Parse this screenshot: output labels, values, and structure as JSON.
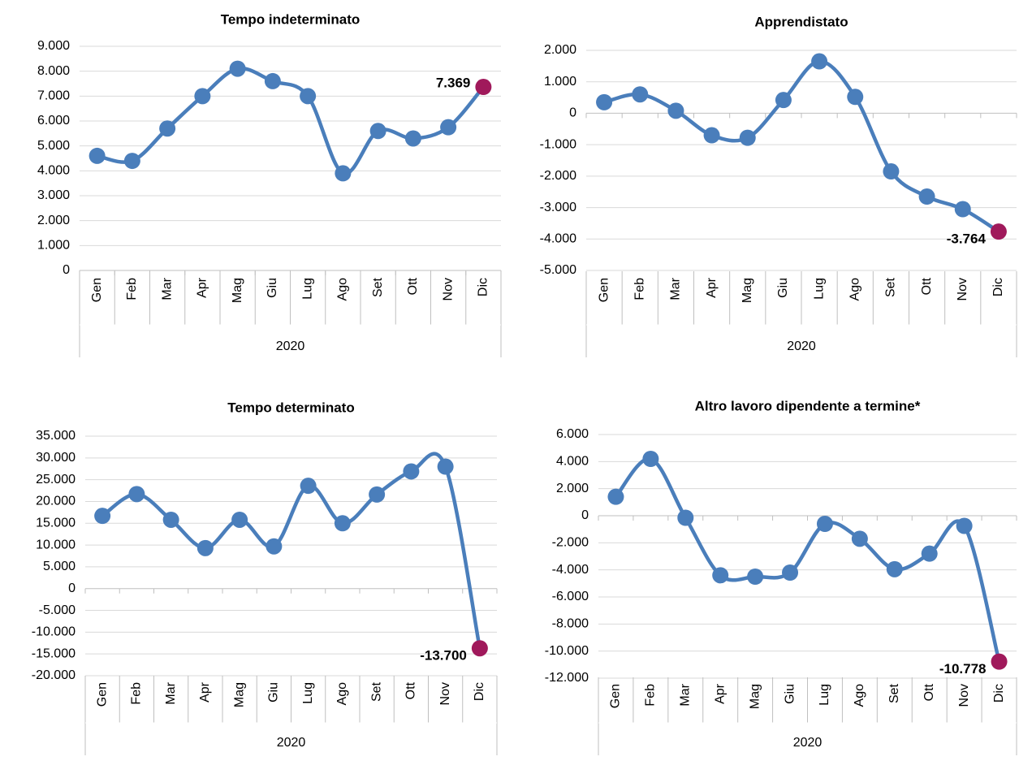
{
  "chart_data": [
    {
      "type": "line",
      "title": "Tempo indeterminato",
      "group": "2020",
      "categories": [
        "Gen",
        "Feb",
        "Mar",
        "Apr",
        "Mag",
        "Giu",
        "Lug",
        "Ago",
        "Set",
        "Ott",
        "Nov",
        "Dic"
      ],
      "values": [
        4600,
        4400,
        5700,
        7000,
        8100,
        7600,
        7000,
        3900,
        5600,
        5300,
        5750,
        7369
      ],
      "value_labels": [
        null,
        null,
        null,
        null,
        null,
        null,
        null,
        null,
        null,
        null,
        null,
        "7.369"
      ],
      "color": "#4a7ebb",
      "marker_colors": [
        "#4a7ebb",
        "#4a7ebb",
        "#4a7ebb",
        "#4a7ebb",
        "#4a7ebb",
        "#4a7ebb",
        "#4a7ebb",
        "#4a7ebb",
        "#4a7ebb",
        "#4a7ebb",
        "#4a7ebb",
        "#a0195b"
      ],
      "ylim": [
        0,
        9000
      ],
      "yticks": [
        0,
        {
          "value": 1000,
          "label": "1.000"
        },
        {
          "value": 2000,
          "label": "2.000"
        },
        {
          "value": 3000,
          "label": "3.000"
        },
        {
          "value": 4000,
          "label": "4.000"
        },
        {
          "value": 5000,
          "label": "5.000"
        },
        {
          "value": 6000,
          "label": "6.000"
        },
        {
          "value": 7000,
          "label": "7.000"
        },
        {
          "value": 8000,
          "label": "8.000"
        },
        {
          "value": 9000,
          "label": "9.000"
        }
      ],
      "grid": true
    },
    {
      "type": "line",
      "title": "Apprendistato",
      "group": "2020",
      "categories": [
        "Gen",
        "Feb",
        "Mar",
        "Apr",
        "Mag",
        "Giu",
        "Lug",
        "Ago",
        "Set",
        "Ott",
        "Nov",
        "Dic"
      ],
      "values": [
        350,
        600,
        80,
        -700,
        -780,
        420,
        1650,
        520,
        -1850,
        -2650,
        -3050,
        -3764
      ],
      "value_labels": [
        null,
        null,
        null,
        null,
        null,
        null,
        null,
        null,
        null,
        null,
        null,
        "-3.764"
      ],
      "color": "#4a7ebb",
      "marker_colors": [
        "#4a7ebb",
        "#4a7ebb",
        "#4a7ebb",
        "#4a7ebb",
        "#4a7ebb",
        "#4a7ebb",
        "#4a7ebb",
        "#4a7ebb",
        "#4a7ebb",
        "#4a7ebb",
        "#4a7ebb",
        "#a0195b"
      ],
      "ylim": [
        -5000,
        2000
      ],
      "yticks": [
        {
          "value": -5000,
          "label": "-5.000"
        },
        {
          "value": -4000,
          "label": "-4.000"
        },
        {
          "value": -3000,
          "label": "-3.000"
        },
        {
          "value": -2000,
          "label": "-2.000"
        },
        {
          "value": -1000,
          "label": "-1.000"
        },
        0,
        {
          "value": 1000,
          "label": "1.000"
        },
        {
          "value": 2000,
          "label": "2.000"
        }
      ],
      "grid": true
    },
    {
      "type": "line",
      "title": "Tempo determinato",
      "group": "2020",
      "categories": [
        "Gen",
        "Feb",
        "Mar",
        "Apr",
        "Mag",
        "Giu",
        "Lug",
        "Ago",
        "Set",
        "Ott",
        "Nov",
        "Dic"
      ],
      "values": [
        16700,
        21700,
        15800,
        9300,
        15800,
        9700,
        23600,
        15000,
        21600,
        26900,
        28000,
        -13700
      ],
      "value_labels": [
        null,
        null,
        null,
        null,
        null,
        null,
        null,
        null,
        null,
        null,
        null,
        "-13.700"
      ],
      "color": "#4a7ebb",
      "marker_colors": [
        "#4a7ebb",
        "#4a7ebb",
        "#4a7ebb",
        "#4a7ebb",
        "#4a7ebb",
        "#4a7ebb",
        "#4a7ebb",
        "#4a7ebb",
        "#4a7ebb",
        "#4a7ebb",
        "#4a7ebb",
        "#a0195b"
      ],
      "ylim": [
        -20000,
        35000
      ],
      "yticks": [
        {
          "value": -20000,
          "label": "-20.000"
        },
        {
          "value": -15000,
          "label": "-15.000"
        },
        {
          "value": -10000,
          "label": "-10.000"
        },
        {
          "value": -5000,
          "label": "-5.000"
        },
        0,
        {
          "value": 5000,
          "label": "5.000"
        },
        {
          "value": 10000,
          "label": "10.000"
        },
        {
          "value": 15000,
          "label": "15.000"
        },
        {
          "value": 20000,
          "label": "20.000"
        },
        {
          "value": 25000,
          "label": "25.000"
        },
        {
          "value": 30000,
          "label": "30.000"
        },
        {
          "value": 35000,
          "label": "35.000"
        }
      ],
      "grid": true
    },
    {
      "type": "line",
      "title": "Altro lavoro dipendente a termine*",
      "group": "2020",
      "categories": [
        "Gen",
        "Feb",
        "Mar",
        "Apr",
        "Mag",
        "Giu",
        "Lug",
        "Ago",
        "Set",
        "Ott",
        "Nov",
        "Dic"
      ],
      "values": [
        1400,
        4200,
        -150,
        -4400,
        -4500,
        -4200,
        -600,
        -1700,
        -3950,
        -2800,
        -750,
        -10778
      ],
      "value_labels": [
        null,
        null,
        null,
        null,
        null,
        null,
        null,
        null,
        null,
        null,
        null,
        "-10.778"
      ],
      "color": "#4a7ebb",
      "marker_colors": [
        "#4a7ebb",
        "#4a7ebb",
        "#4a7ebb",
        "#4a7ebb",
        "#4a7ebb",
        "#4a7ebb",
        "#4a7ebb",
        "#4a7ebb",
        "#4a7ebb",
        "#4a7ebb",
        "#4a7ebb",
        "#a0195b"
      ],
      "ylim": [
        -12000,
        6000
      ],
      "yticks": [
        {
          "value": -12000,
          "label": "-12.000"
        },
        {
          "value": -10000,
          "label": "-10.000"
        },
        {
          "value": -8000,
          "label": "-8.000"
        },
        {
          "value": -6000,
          "label": "-6.000"
        },
        {
          "value": -4000,
          "label": "-4.000"
        },
        {
          "value": -2000,
          "label": "-2.000"
        },
        0,
        {
          "value": 2000,
          "label": "2.000"
        },
        {
          "value": 4000,
          "label": "4.000"
        },
        {
          "value": 6000,
          "label": "6.000"
        }
      ],
      "grid": true
    }
  ]
}
